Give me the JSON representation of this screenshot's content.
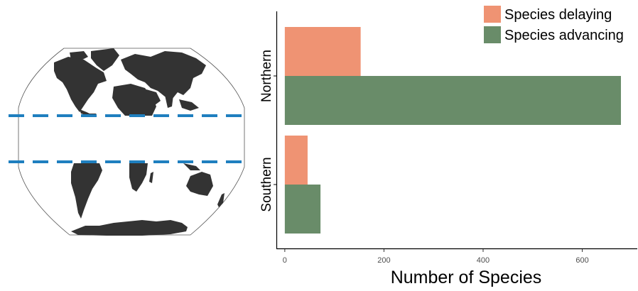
{
  "chart_data": {
    "type": "bar",
    "orientation": "horizontal",
    "categories": [
      "Northern",
      "Southern"
    ],
    "series": [
      {
        "name": "Species delaying",
        "color": "#ef9373",
        "values": [
          153,
          46
        ]
      },
      {
        "name": "Species advancing",
        "color": "#698c69",
        "values": [
          678,
          72
        ]
      }
    ],
    "xlabel": "Number of Species",
    "ylabel": "",
    "xlim": [
      -17,
      711
    ],
    "xticks": [
      0,
      200,
      400,
      600
    ],
    "grid": false,
    "legend_position": "top-right"
  },
  "map": {
    "description_icon": "world-map-icon",
    "land_color": "#333333",
    "latitude_line_color": "#1f7fbf"
  }
}
